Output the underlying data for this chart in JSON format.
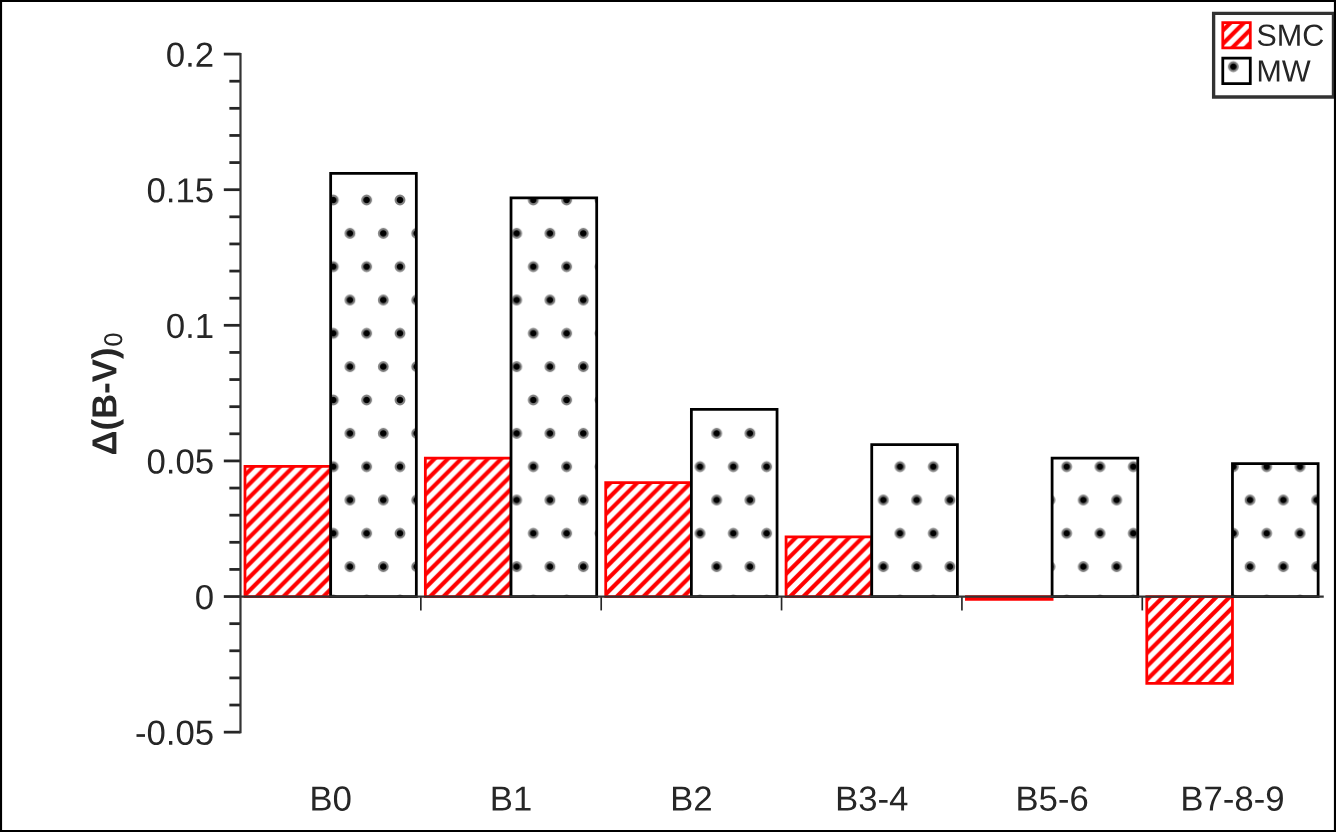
{
  "chart_data": {
    "type": "bar",
    "ylabel": "Δ(B-V)$_{0}$",
    "categories": [
      "B0",
      "B1",
      "B2",
      "B3-4",
      "B5-6",
      "B7-8-9"
    ],
    "series": [
      {
        "name": "SMC",
        "color": "#ff0000",
        "values": [
          0.048,
          0.051,
          0.042,
          0.022,
          -0.001,
          -0.032
        ]
      },
      {
        "name": "MW",
        "color": "#000000",
        "values": [
          0.156,
          0.147,
          0.069,
          0.056,
          0.051,
          0.049
        ]
      }
    ],
    "ylim": [
      -0.05,
      0.2
    ],
    "yticks": [
      -0.05,
      {
        "value": -0.04,
        "label": null
      },
      {
        "value": -0.03,
        "label": null
      },
      {
        "value": -0.02,
        "label": null
      },
      {
        "value": -0.01,
        "label": null
      },
      0,
      {
        "value": 0.01,
        "label": null
      },
      {
        "value": 0.02,
        "label": null
      },
      {
        "value": 0.03,
        "label": null
      },
      {
        "value": 0.04,
        "label": null
      },
      0.05,
      {
        "value": 0.06,
        "label": null
      },
      {
        "value": 0.07,
        "label": null
      },
      {
        "value": 0.08,
        "label": null
      },
      {
        "value": 0.09,
        "label": null
      },
      0.1,
      {
        "value": 0.11,
        "label": null
      },
      {
        "value": 0.12,
        "label": null
      },
      {
        "value": 0.13,
        "label": null
      },
      {
        "value": 0.14,
        "label": null
      },
      0.15,
      {
        "value": 0.16,
        "label": null
      },
      {
        "value": 0.17,
        "label": null
      },
      {
        "value": 0.18,
        "label": null
      },
      {
        "value": 0.19,
        "label": null
      },
      0.2
    ],
    "legend": "top right"
  }
}
